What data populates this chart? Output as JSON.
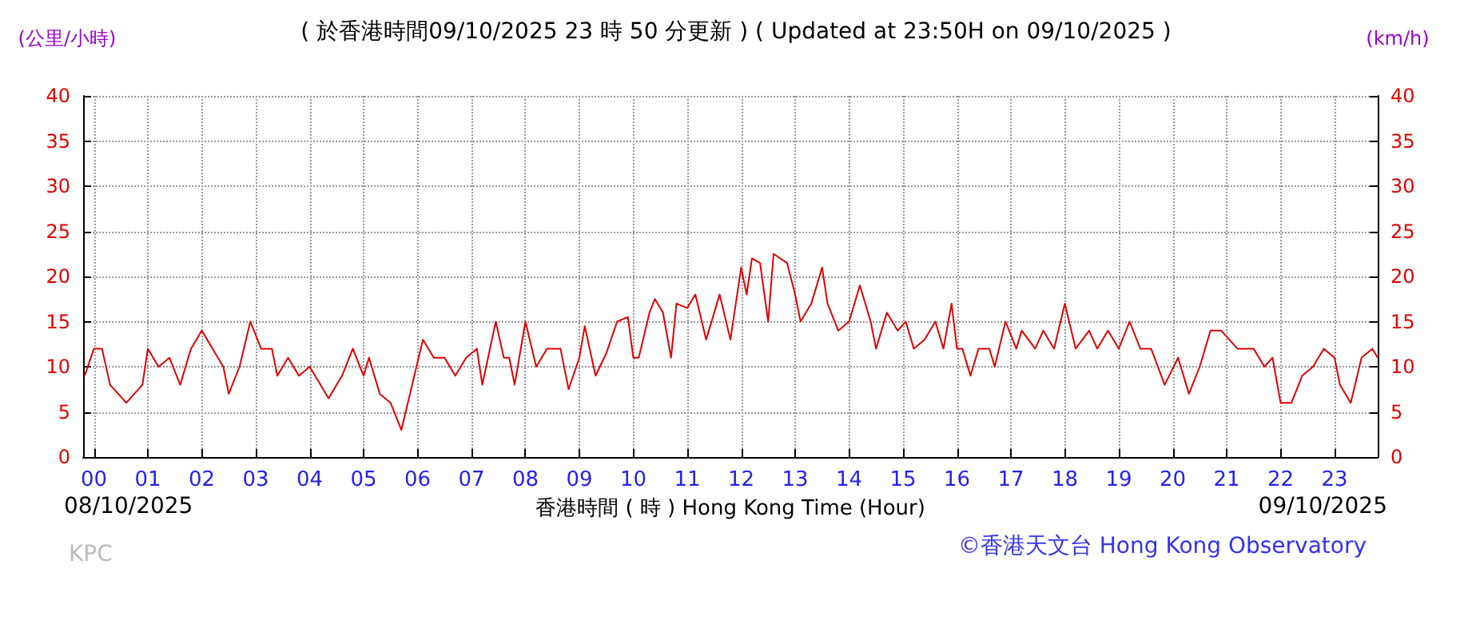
{
  "chart_data": {
    "type": "line",
    "title": "( 於香港時間09/10/2025 23 時 50 分更新 ) ( Updated at 23:50H on 09/10/2025 )",
    "xlabel": "香港時間 ( 時 ) Hong Kong Time (Hour)",
    "ylabel": "(公里/小時)",
    "y2label": "(km/h)",
    "annotations": [
      "08/10/2025",
      "09/10/2025",
      "KPC",
      "©香港天文台 Hong Kong Observatory"
    ],
    "x": [
      -0.17,
      0,
      0.15,
      0.3,
      0.45,
      0.6,
      0.75,
      0.9,
      1,
      1.2,
      1.4,
      1.6,
      1.8,
      2,
      2.2,
      2.4,
      2.5,
      2.7,
      2.9,
      3.1,
      3.3,
      3.4,
      3.6,
      3.8,
      4,
      4.2,
      4.35,
      4.6,
      4.8,
      5,
      5.1,
      5.3,
      5.5,
      5.7,
      5.9,
      6.1,
      6.3,
      6.5,
      6.7,
      6.9,
      7.1,
      7.2,
      7.45,
      7.6,
      7.7,
      7.8,
      8,
      8.2,
      8.4,
      8.65,
      8.8,
      9,
      9.1,
      9.3,
      9.5,
      9.7,
      9.9,
      10,
      10.1,
      10.3,
      10.4,
      10.55,
      10.7,
      10.8,
      11,
      11.15,
      11.35,
      11.6,
      11.8,
      12,
      12.1,
      12.2,
      12.35,
      12.5,
      12.6,
      12.85,
      13,
      13.1,
      13.3,
      13.5,
      13.6,
      13.8,
      14,
      14.2,
      14.4,
      14.5,
      14.7,
      14.9,
      15.05,
      15.2,
      15.4,
      15.6,
      15.75,
      15.9,
      16,
      16.1,
      16.25,
      16.4,
      16.6,
      16.7,
      16.9,
      17.1,
      17.2,
      17.45,
      17.6,
      17.8,
      18,
      18.2,
      18.45,
      18.6,
      18.8,
      19,
      19.2,
      19.4,
      19.6,
      19.85,
      20.1,
      20.3,
      20.5,
      20.7,
      20.9,
      21.2,
      21.5,
      21.7,
      21.85,
      22,
      22.2,
      22.4,
      22.6,
      22.8,
      23,
      23.1,
      23.3,
      23.5,
      23.7,
      23.8
    ],
    "series": [
      {
        "color": "#e00000",
        "values": [
          9,
          12,
          12,
          8,
          7,
          6,
          7,
          8,
          12,
          10,
          11,
          8,
          12,
          14,
          12,
          10,
          7,
          10,
          15,
          12,
          12,
          9,
          11,
          9,
          10,
          8,
          6.5,
          9,
          12,
          9,
          11,
          7,
          6,
          3,
          8,
          13,
          11,
          11,
          9,
          11,
          12,
          8,
          15,
          11,
          11,
          8,
          15,
          10,
          12,
          12,
          7.5,
          11,
          14.5,
          9,
          11.5,
          15,
          15.5,
          11,
          11,
          16,
          17.5,
          16,
          11,
          17,
          16.5,
          18,
          13,
          18,
          13,
          21,
          18,
          22,
          21.5,
          15,
          22.5,
          21.5,
          18,
          15,
          17,
          21,
          17,
          14,
          15,
          19,
          15,
          12,
          16,
          14,
          15,
          12,
          13,
          15,
          12,
          17,
          12,
          12,
          9,
          12,
          12,
          10,
          15,
          12,
          14,
          12,
          14,
          12,
          17,
          12,
          14,
          12,
          14,
          12,
          15,
          12,
          12,
          8,
          11,
          7,
          10,
          14,
          14,
          12,
          12,
          10,
          11,
          6,
          6,
          9,
          10,
          12,
          11,
          8,
          6,
          11,
          12,
          11
        ]
      }
    ],
    "xlim": [
      -0.2,
      23.8
    ],
    "xticks": [
      {
        "value": 0,
        "label": "00"
      },
      {
        "value": 1,
        "label": "01"
      },
      {
        "value": 2,
        "label": "02"
      },
      {
        "value": 3,
        "label": "03"
      },
      {
        "value": 4,
        "label": "04"
      },
      {
        "value": 5,
        "label": "05"
      },
      {
        "value": 6,
        "label": "06"
      },
      {
        "value": 7,
        "label": "07"
      },
      {
        "value": 8,
        "label": "08"
      },
      {
        "value": 9,
        "label": "09"
      },
      {
        "value": 10,
        "label": "10"
      },
      {
        "value": 11,
        "label": "11"
      },
      {
        "value": 12,
        "label": "12"
      },
      {
        "value": 13,
        "label": "13"
      },
      {
        "value": 14,
        "label": "14"
      },
      {
        "value": 15,
        "label": "15"
      },
      {
        "value": 16,
        "label": "16"
      },
      {
        "value": 17,
        "label": "17"
      },
      {
        "value": 18,
        "label": "18"
      },
      {
        "value": 19,
        "label": "19"
      },
      {
        "value": 20,
        "label": "20"
      },
      {
        "value": 21,
        "label": "21"
      },
      {
        "value": 22,
        "label": "22"
      },
      {
        "value": 23,
        "label": "23"
      }
    ],
    "ylim": [
      0,
      40
    ],
    "yticks": [
      0,
      5,
      10,
      15,
      20,
      25,
      30,
      35,
      40
    ],
    "y2lim": [
      0,
      40
    ],
    "y2ticks": [
      0,
      5,
      10,
      15,
      20,
      25,
      30,
      35,
      40
    ],
    "grid": true,
    "marker": "none",
    "line_style": "solid"
  }
}
